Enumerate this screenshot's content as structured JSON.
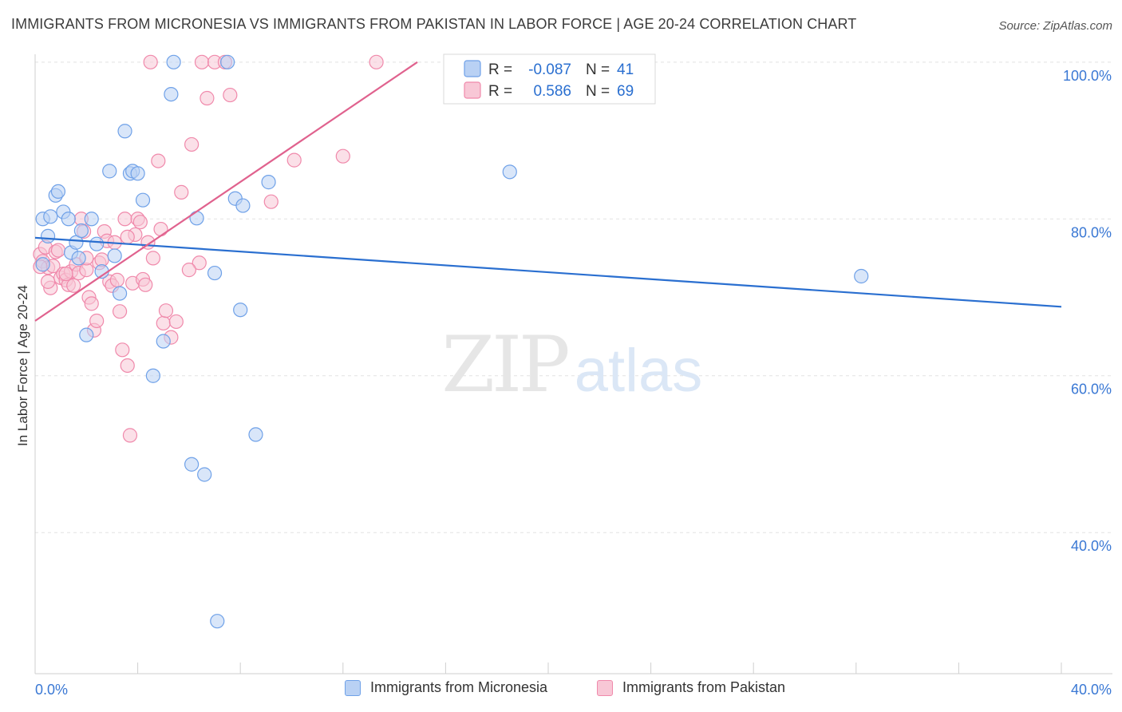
{
  "header": {
    "title": "IMMIGRANTS FROM MICRONESIA VS IMMIGRANTS FROM PAKISTAN IN LABOR FORCE | AGE 20-24 CORRELATION CHART",
    "source": "Source: ZipAtlas.com"
  },
  "watermark": {
    "zip": "ZIP",
    "atlas": "atlas"
  },
  "chart_data": {
    "type": "scatter",
    "title": "IMMIGRANTS FROM MICRONESIA VS IMMIGRANTS FROM PAKISTAN IN LABOR FORCE | AGE 20-24 CORRELATION CHART",
    "xlabel": "",
    "ylabel": "In Labor Force | Age 20-24",
    "xlim": [
      0,
      40
    ],
    "ylim": [
      22,
      101
    ],
    "x_tick_labels": [
      {
        "value": 0,
        "label": "0.0%"
      },
      {
        "value": 40,
        "label": "40.0%"
      }
    ],
    "y_tick_labels": [
      {
        "value": 100,
        "label": "100.0%"
      },
      {
        "value": 80,
        "label": "80.0%"
      },
      {
        "value": 60,
        "label": "60.0%"
      },
      {
        "value": 40,
        "label": "40.0%"
      }
    ],
    "grid": true,
    "legend_position": "top-center",
    "series": [
      {
        "name": "Immigrants from Micronesia",
        "color": "#6fa1e8",
        "fill": "#b9d1f4",
        "line_color": "#2a6fd0",
        "R": "-0.087",
        "N": "41",
        "trend": {
          "x": [
            0,
            40
          ],
          "y": [
            77.6,
            68.8
          ]
        },
        "points": [
          [
            0.3,
            80.0
          ],
          [
            0.5,
            77.8
          ],
          [
            0.6,
            80.3
          ],
          [
            0.8,
            83.0
          ],
          [
            0.9,
            83.5
          ],
          [
            1.1,
            80.9
          ],
          [
            1.3,
            80.0
          ],
          [
            1.4,
            75.7
          ],
          [
            1.6,
            77.0
          ],
          [
            1.7,
            75.0
          ],
          [
            1.8,
            78.5
          ],
          [
            2.2,
            80.0
          ],
          [
            2.4,
            76.8
          ],
          [
            2.6,
            73.3
          ],
          [
            2.9,
            86.1
          ],
          [
            3.1,
            75.3
          ],
          [
            3.3,
            70.5
          ],
          [
            3.5,
            91.2
          ],
          [
            3.7,
            85.8
          ],
          [
            3.8,
            86.1
          ],
          [
            4.0,
            85.8
          ],
          [
            4.2,
            82.4
          ],
          [
            4.6,
            60.0
          ],
          [
            5.0,
            64.4
          ],
          [
            5.3,
            95.9
          ],
          [
            5.4,
            100.0
          ],
          [
            6.1,
            48.7
          ],
          [
            6.3,
            80.1
          ],
          [
            6.6,
            47.4
          ],
          [
            7.0,
            73.1
          ],
          [
            7.1,
            28.7
          ],
          [
            7.5,
            100.0
          ],
          [
            7.8,
            82.6
          ],
          [
            8.0,
            68.4
          ],
          [
            8.1,
            81.7
          ],
          [
            8.6,
            52.5
          ],
          [
            9.1,
            84.7
          ],
          [
            18.5,
            86.0
          ],
          [
            32.2,
            72.7
          ],
          [
            0.3,
            74.2
          ],
          [
            2.0,
            65.2
          ]
        ]
      },
      {
        "name": "Immigrants from Pakistan",
        "color": "#f089ab",
        "fill": "#f8c7d6",
        "line_color": "#e0628e",
        "R": "0.586",
        "N": "69",
        "trend": {
          "x": [
            0,
            14.9
          ],
          "y": [
            67.0,
            100.0
          ]
        },
        "points": [
          [
            0.2,
            75.5
          ],
          [
            0.3,
            74.6
          ],
          [
            0.4,
            76.4
          ],
          [
            0.5,
            73.8
          ],
          [
            0.6,
            71.2
          ],
          [
            0.7,
            74.0
          ],
          [
            0.8,
            75.8
          ],
          [
            0.9,
            76.0
          ],
          [
            1.0,
            72.5
          ],
          [
            1.1,
            73.0
          ],
          [
            1.2,
            72.2
          ],
          [
            1.3,
            71.6
          ],
          [
            1.4,
            73.3
          ],
          [
            1.5,
            71.5
          ],
          [
            1.6,
            74.2
          ],
          [
            1.7,
            73.1
          ],
          [
            1.8,
            80.0
          ],
          [
            1.9,
            78.4
          ],
          [
            2.0,
            73.5
          ],
          [
            2.1,
            70.0
          ],
          [
            2.2,
            69.2
          ],
          [
            2.3,
            65.8
          ],
          [
            2.4,
            67.0
          ],
          [
            2.5,
            74.4
          ],
          [
            2.6,
            74.8
          ],
          [
            2.7,
            78.4
          ],
          [
            2.8,
            77.2
          ],
          [
            2.9,
            72.0
          ],
          [
            3.0,
            71.5
          ],
          [
            3.1,
            77.0
          ],
          [
            3.2,
            72.2
          ],
          [
            3.3,
            68.2
          ],
          [
            3.4,
            63.3
          ],
          [
            3.5,
            80.0
          ],
          [
            3.6,
            61.3
          ],
          [
            3.7,
            52.4
          ],
          [
            3.8,
            71.8
          ],
          [
            3.9,
            78.0
          ],
          [
            4.0,
            80.0
          ],
          [
            4.1,
            79.6
          ],
          [
            4.2,
            72.3
          ],
          [
            4.4,
            77.0
          ],
          [
            4.5,
            100.0
          ],
          [
            4.6,
            75.0
          ],
          [
            4.8,
            87.4
          ],
          [
            4.9,
            78.7
          ],
          [
            5.0,
            66.7
          ],
          [
            5.1,
            68.3
          ],
          [
            5.3,
            64.9
          ],
          [
            5.5,
            66.9
          ],
          [
            5.7,
            83.4
          ],
          [
            6.1,
            89.5
          ],
          [
            6.4,
            74.4
          ],
          [
            6.5,
            100.0
          ],
          [
            6.7,
            95.4
          ],
          [
            7.0,
            100.0
          ],
          [
            7.4,
            100.0
          ],
          [
            7.6,
            95.8
          ],
          [
            9.2,
            82.2
          ],
          [
            10.1,
            87.5
          ],
          [
            12.0,
            88.0
          ],
          [
            13.3,
            100.0
          ],
          [
            0.2,
            73.9
          ],
          [
            0.5,
            72.0
          ],
          [
            1.2,
            73.0
          ],
          [
            2.0,
            75.0
          ],
          [
            3.6,
            77.7
          ],
          [
            4.3,
            71.6
          ],
          [
            6.0,
            73.5
          ]
        ]
      }
    ]
  },
  "legend_bottom": [
    {
      "label": "Immigrants from Micronesia"
    },
    {
      "label": "Immigrants from Pakistan"
    }
  ]
}
